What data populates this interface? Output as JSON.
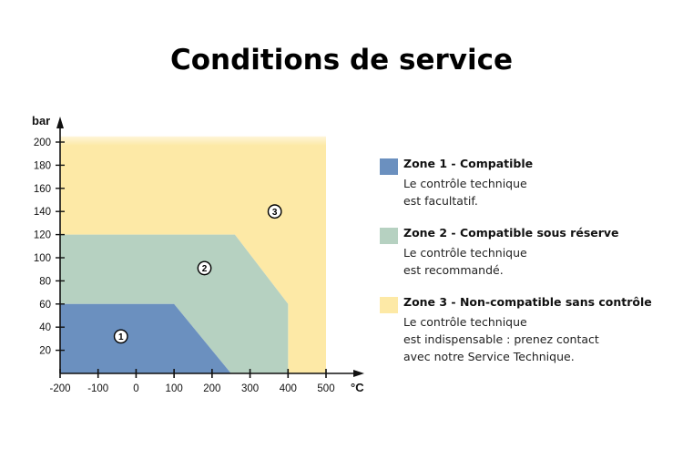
{
  "title": "Conditions de service",
  "colors": {
    "zone1": "#6b90bf",
    "zone2": "#b6d1c1",
    "zone3": "#fde9a6",
    "axis": "#111111"
  },
  "legend": [
    {
      "title": "Zone 1 - Compatible",
      "lines": [
        "Le contrôle technique",
        "est facultatif."
      ]
    },
    {
      "title": "Zone 2 - Compatible sous réserve",
      "lines": [
        "Le contrôle technique",
        "est recommandé."
      ]
    },
    {
      "title": "Zone 3 - Non-compatible sans contrôle",
      "lines": [
        "Le contrôle technique",
        "est indispensable : prenez contact",
        "avec notre Service Technique."
      ]
    }
  ],
  "chart_data": {
    "type": "area",
    "title": "Conditions de service",
    "xlabel": "°C",
    "ylabel": "bar",
    "xlim": [
      -200,
      500
    ],
    "ylim": [
      0,
      200
    ],
    "x_ticks": [
      "-200",
      "-100",
      "0",
      "100",
      "200",
      "300",
      "400",
      "500"
    ],
    "y_ticks": [
      "20",
      "40",
      "60",
      "80",
      "100",
      "120",
      "140",
      "160",
      "180",
      "200"
    ],
    "grid": false,
    "legend_position": "right",
    "series": [
      {
        "name": "Zone 1 - Compatible",
        "marker": "1",
        "color": "#6b90bf",
        "polygon": [
          [
            -200,
            0
          ],
          [
            -200,
            60
          ],
          [
            100,
            60
          ],
          [
            250,
            0
          ]
        ],
        "label_at": [
          -40,
          32
        ]
      },
      {
        "name": "Zone 2 - Compatible sous réserve",
        "marker": "2",
        "color": "#b6d1c1",
        "polygon": [
          [
            -200,
            60
          ],
          [
            -200,
            120
          ],
          [
            260,
            120
          ],
          [
            400,
            60
          ],
          [
            400,
            0
          ],
          [
            250,
            0
          ],
          [
            100,
            60
          ]
        ],
        "label_at": [
          180,
          91
        ]
      },
      {
        "name": "Zone 3 - Non-compatible sans contrôle",
        "marker": "3",
        "color": "#fde9a6",
        "polygon": [
          [
            -200,
            120
          ],
          [
            -200,
            205
          ],
          [
            500,
            205
          ],
          [
            500,
            0
          ],
          [
            400,
            0
          ],
          [
            400,
            60
          ],
          [
            260,
            120
          ]
        ],
        "label_at": [
          365,
          140
        ]
      }
    ]
  }
}
